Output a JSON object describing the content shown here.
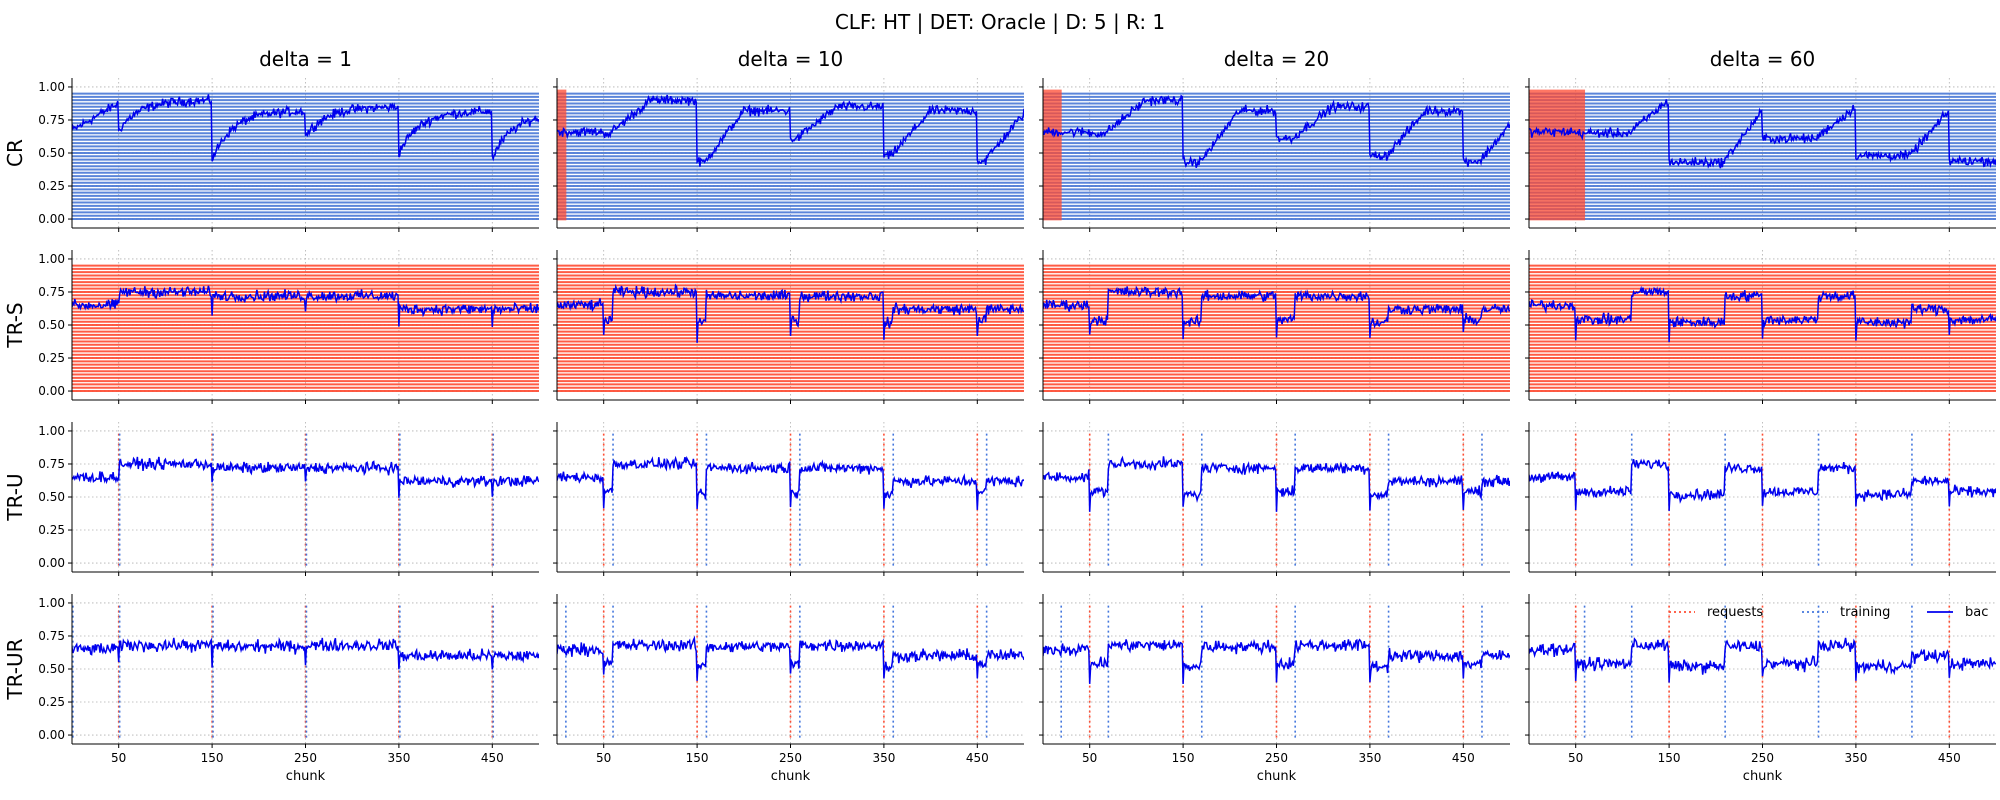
{
  "figure": {
    "suptitle": "CLF: HT | DET: Oracle | D: 5 | R: 1",
    "column_titles": [
      "delta = 1",
      "delta = 10",
      "delta = 20",
      "delta = 60"
    ],
    "row_labels": [
      "CR",
      "TR-S",
      "TR-U",
      "TR-UR"
    ],
    "xlabel": "chunk"
  },
  "chart_data": {
    "type": "line",
    "layout": "grid 4 rows x 4 columns, shared axes",
    "xlim": [
      0,
      500
    ],
    "ylim": [
      -0.03,
      1.03
    ],
    "x_ticks": [
      50,
      150,
      250,
      350,
      450
    ],
    "y_ticks": [
      "0.00",
      "0.25",
      "0.50",
      "0.75",
      "1.00"
    ],
    "grid": "dotted",
    "legend": {
      "placement": "top-right (row TR-UR, column delta = 60)",
      "entries": [
        {
          "label": "requests",
          "style": "dotted",
          "color": "#ff4d33"
        },
        {
          "label": "training",
          "style": "dotted",
          "color": "#4477dd"
        },
        {
          "label": "bac",
          "style": "solid",
          "color": "#0000ee"
        }
      ]
    },
    "colors": {
      "bac": "#0000ee",
      "requests": "#ff4d33",
      "training": "#4477dd",
      "cr_fill": "#4a78d6",
      "trs_fill": "#ff4a30"
    },
    "drifts_at": [
      50,
      150,
      250,
      350,
      450
    ],
    "deltas": [
      1,
      10,
      20,
      60
    ],
    "rows": [
      {
        "name": "CR",
        "marker": "dense horizontal band fill (blue), red prefix of width delta"
      },
      {
        "name": "TR-S",
        "marker": "dense horizontal band fill (red)"
      },
      {
        "name": "TR-U",
        "marker": "vertical dotted requests at drifts, training at drift + delta"
      },
      {
        "name": "TR-UR",
        "marker": "vertical dotted requests at drifts, training at drift + delta"
      }
    ],
    "bac_levels": {
      "CR": [
        [
          0.67,
          0.9
        ],
        [
          0.45,
          0.82
        ],
        [
          0.63,
          0.85
        ],
        [
          0.5,
          0.82
        ],
        [
          0.46,
          0.8
        ]
      ],
      "TR-S": [
        [
          0.65,
          0.65
        ],
        [
          0.75,
          0.75
        ],
        [
          0.72,
          0.72
        ],
        [
          0.72,
          0.72
        ],
        [
          0.62,
          0.62
        ],
        [
          0.62,
          0.62
        ]
      ],
      "TR-U": [
        [
          0.65,
          0.65
        ],
        [
          0.75,
          0.75
        ],
        [
          0.72,
          0.72
        ],
        [
          0.72,
          0.72
        ],
        [
          0.62,
          0.62
        ],
        [
          0.62,
          0.62
        ]
      ],
      "TR-UR": [
        [
          0.65,
          0.65
        ],
        [
          0.68,
          0.68
        ],
        [
          0.67,
          0.67
        ],
        [
          0.68,
          0.68
        ],
        [
          0.6,
          0.6
        ],
        [
          0.6,
          0.6
        ]
      ]
    },
    "dip_during_retrain": 0.52
  }
}
